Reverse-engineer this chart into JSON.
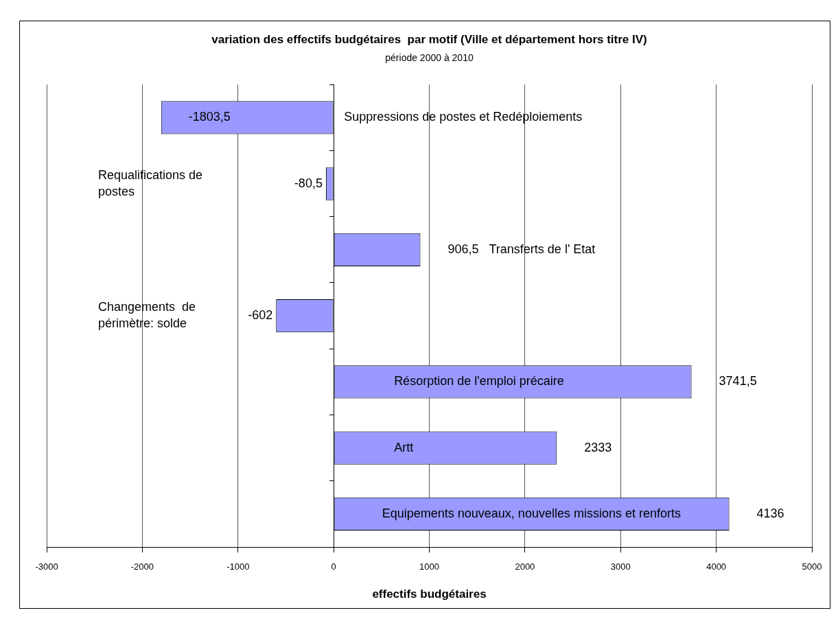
{
  "chart_data": {
    "type": "bar",
    "orientation": "horizontal",
    "title": "variation des effectifs budgétaires  par motif (Ville et département hors titre IV)",
    "subtitle": "période 2000 à 2010",
    "xlabel": "effectifs budgétaires",
    "categories": [
      "Suppressions de postes et Redéploiements",
      "Requalifications de postes",
      "Transferts de l' Etat",
      "Changements  de périmètre: solde",
      "Résorption de l'emploi précaire",
      "Artt",
      "Equipements nouveaux, nouvelles missions et renforts"
    ],
    "values": [
      -1803.5,
      -80.5,
      906.5,
      -602,
      3741.5,
      2333,
      4136
    ],
    "value_labels": [
      "-1803,5",
      "-80,5",
      "906,5",
      "-602",
      "3741,5",
      "2333",
      "4136"
    ],
    "color": "#9999ff",
    "xlim": [
      -3000,
      5000
    ],
    "xticks": [
      -3000,
      -2000,
      -1000,
      0,
      1000,
      2000,
      3000,
      4000,
      5000
    ],
    "grid": "x",
    "legend": false
  }
}
